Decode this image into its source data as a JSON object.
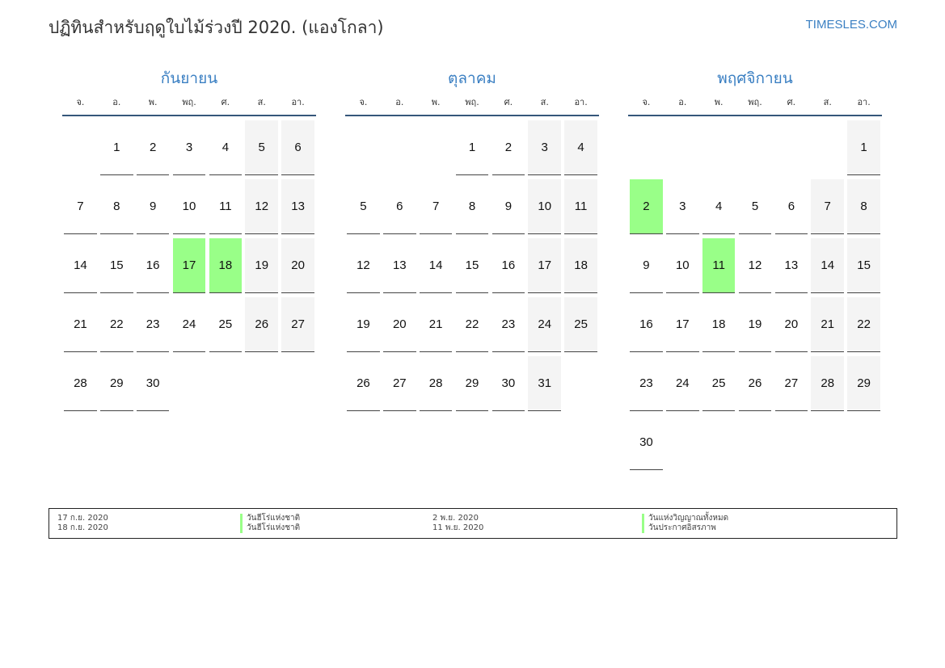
{
  "title": "ปฏิทินสำหรับฤดูใบไม้ร่วงปี 2020. (แองโกลา)",
  "site": "TIMESLES.COM",
  "colors": {
    "accent": "#3a7fc2",
    "holiday": "#99ff88",
    "weekend": "#f4f4f4"
  },
  "weekdays": [
    "จ.",
    "อ.",
    "พ.",
    "พฤ.",
    "ศ.",
    "ส.",
    "อา."
  ],
  "months": [
    {
      "name": "กันยายน",
      "holidays": [
        17,
        18
      ],
      "weeks": [
        [
          null,
          1,
          2,
          3,
          4,
          5,
          6
        ],
        [
          7,
          8,
          9,
          10,
          11,
          12,
          13
        ],
        [
          14,
          15,
          16,
          17,
          18,
          19,
          20
        ],
        [
          21,
          22,
          23,
          24,
          25,
          26,
          27
        ],
        [
          28,
          29,
          30,
          null,
          null,
          null,
          null
        ]
      ]
    },
    {
      "name": "ตุลาคม",
      "holidays": [],
      "weeks": [
        [
          null,
          null,
          null,
          1,
          2,
          3,
          4
        ],
        [
          5,
          6,
          7,
          8,
          9,
          10,
          11
        ],
        [
          12,
          13,
          14,
          15,
          16,
          17,
          18
        ],
        [
          19,
          20,
          21,
          22,
          23,
          24,
          25
        ],
        [
          26,
          27,
          28,
          29,
          30,
          31,
          null
        ]
      ]
    },
    {
      "name": "พฤศจิกายน",
      "holidays": [
        2,
        11
      ],
      "weeks": [
        [
          null,
          null,
          null,
          null,
          null,
          null,
          1
        ],
        [
          2,
          3,
          4,
          5,
          6,
          7,
          8
        ],
        [
          9,
          10,
          11,
          12,
          13,
          14,
          15
        ],
        [
          16,
          17,
          18,
          19,
          20,
          21,
          22
        ],
        [
          23,
          24,
          25,
          26,
          27,
          28,
          29
        ],
        [
          30,
          null,
          null,
          null,
          null,
          null,
          null
        ]
      ]
    }
  ],
  "legend": [
    {
      "date": "17 ก.ย. 2020",
      "name": "วันฮีโร่แห่งชาติ"
    },
    {
      "date": "18 ก.ย. 2020",
      "name": "วันฮีโร่แห่งชาติ"
    },
    {
      "date": "2 พ.ย. 2020",
      "name": "วันแห่งวิญญาณทั้งหมด"
    },
    {
      "date": "11 พ.ย. 2020",
      "name": "วันประกาศอิสรภาพ"
    }
  ]
}
